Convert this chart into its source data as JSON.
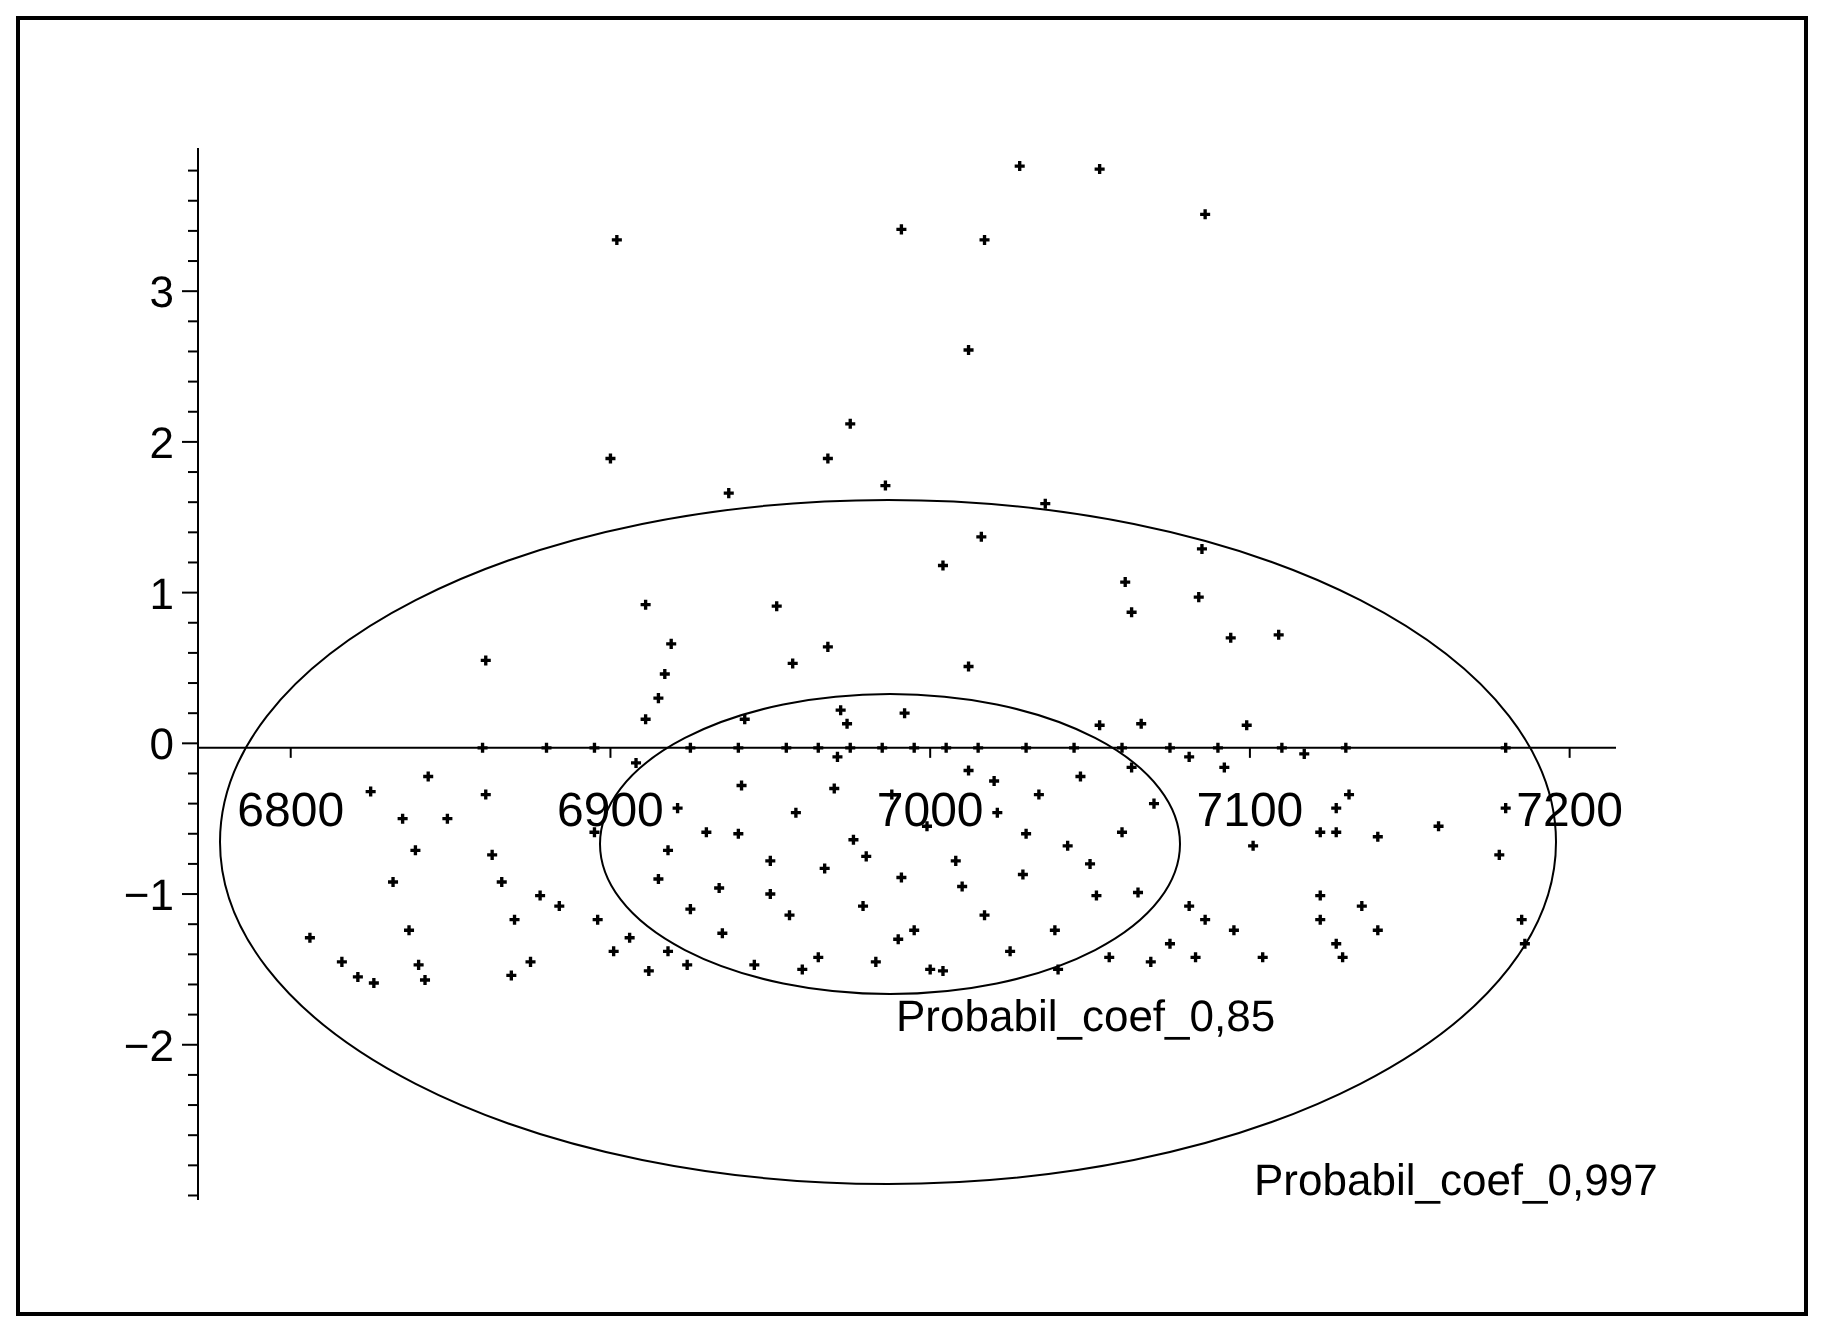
{
  "chart_data": {
    "type": "scatter",
    "marker": "cross",
    "grid": false,
    "xlim": [
      6771,
      7212
    ],
    "xticks": [
      6800,
      6900,
      7000,
      7100,
      7200
    ],
    "ylim": [
      -3.03,
      3.95
    ],
    "yticks": [
      {
        "value": -3.0,
        "label": null
      },
      {
        "value": -2.8,
        "label": null
      },
      {
        "value": -2.6,
        "label": null
      },
      {
        "value": -2.4,
        "label": null
      },
      {
        "value": -2.2,
        "label": null
      },
      {
        "value": -2,
        "label": "−2"
      },
      {
        "value": -1.8,
        "label": null
      },
      {
        "value": -1.6,
        "label": null
      },
      {
        "value": -1.4,
        "label": null
      },
      {
        "value": -1.2,
        "label": null
      },
      {
        "value": -1,
        "label": "−1"
      },
      {
        "value": -0.8,
        "label": null
      },
      {
        "value": -0.6,
        "label": null
      },
      {
        "value": -0.4,
        "label": null
      },
      {
        "value": -0.2,
        "label": null
      },
      0,
      {
        "value": 0.2,
        "label": null
      },
      {
        "value": 0.4,
        "label": null
      },
      {
        "value": 0.6,
        "label": null
      },
      {
        "value": 0.8,
        "label": null
      },
      1,
      {
        "value": 1.2,
        "label": null
      },
      {
        "value": 1.4,
        "label": null
      },
      {
        "value": 1.6,
        "label": null
      },
      {
        "value": 1.8,
        "label": null
      },
      2,
      {
        "value": 2.2,
        "label": null
      },
      {
        "value": 2.4,
        "label": null
      },
      {
        "value": 2.6,
        "label": null
      },
      {
        "value": 2.8,
        "label": null
      },
      3,
      {
        "value": 3.2,
        "label": null
      },
      {
        "value": 3.4,
        "label": null
      },
      {
        "value": 3.6,
        "label": null
      },
      {
        "value": 3.8,
        "label": null
      }
    ],
    "annotations": [
      "Probabil_coef_0,85",
      "Probabil_coef_0,997"
    ],
    "series": [
      {
        "color": "#000000",
        "x": [
          6902,
          7028,
          7053,
          7086,
          6991,
          7017,
          7012,
          6975,
          6900,
          6968,
          6986,
          6937,
          7036,
          7016,
          7004,
          7061,
          7063,
          7085,
          7084,
          7094,
          7109,
          6911,
          6952,
          6919,
          6957,
          6968,
          7012,
          6861,
          6917,
          6915,
          6911,
          6972,
          6992,
          6942,
          7053,
          7066,
          7099,
          6974,
          6806,
          6816,
          6821,
          6826,
          6825,
          6843,
          6835,
          6839,
          6832,
          6837,
          6840,
          6842,
          6849,
          6861,
          6863,
          6866,
          6870,
          6869,
          6875,
          6878,
          6884,
          6895,
          6896,
          6901,
          6906,
          6912,
          6918,
          6924,
          6908,
          6921,
          6918,
          6930,
          6934,
          6935,
          6941,
          6945,
          6950,
          6956,
          6958,
          6965,
          6967,
          6971,
          6976,
          6979,
          6983,
          6988,
          6991,
          6995,
          6999,
          7004,
          7008,
          7012,
          7017,
          7021,
          7025,
          7029,
          7034,
          7039,
          7043,
          7047,
          7052,
          7056,
          7060,
          7063,
          7065,
          7069,
          7081,
          7086,
          7075,
          7083,
          7095,
          7101,
          7104,
          7081,
          7092,
          7117,
          7127,
          7131,
          7122,
          7127,
          7140,
          7122,
          7135,
          7122,
          7127,
          7129,
          7140,
          7159,
          7180,
          7178,
          7185,
          7186,
          6860,
          6880,
          6895,
          6925,
          6940,
          6955,
          6965,
          6975,
          6985,
          6995,
          7005,
          7015,
          7030,
          7045,
          7060,
          7075,
          7090,
          7110,
          7130,
          7180,
          6950,
          6990,
          7010,
          6940,
          7030,
          6970,
          7050,
          6925,
          6960,
          7000,
          7040,
          7020,
          6980,
          7070,
          6915
        ],
        "values": [
          3.34,
          3.83,
          3.81,
          3.51,
          3.41,
          3.34,
          2.61,
          2.12,
          1.89,
          1.89,
          1.71,
          1.66,
          1.59,
          1.37,
          1.18,
          1.07,
          0.87,
          1.29,
          0.97,
          0.7,
          0.72,
          0.92,
          0.91,
          0.66,
          0.53,
          0.64,
          0.51,
          0.55,
          0.46,
          0.3,
          0.16,
          0.22,
          0.2,
          0.16,
          0.12,
          0.13,
          0.12,
          0.13,
          -1.29,
          -1.45,
          -1.55,
          -1.59,
          -0.32,
          -0.22,
          -0.5,
          -0.71,
          -0.92,
          -1.24,
          -1.47,
          -1.57,
          -0.5,
          -0.34,
          -0.74,
          -0.92,
          -1.17,
          -1.54,
          -1.45,
          -1.01,
          -1.08,
          -0.59,
          -1.17,
          -1.38,
          -1.29,
          -1.51,
          -1.38,
          -1.47,
          -0.13,
          -0.43,
          -0.71,
          -0.59,
          -0.96,
          -1.26,
          -0.28,
          -1.47,
          -0.78,
          -1.14,
          -0.46,
          -1.42,
          -0.83,
          -0.09,
          -0.64,
          -1.08,
          -1.45,
          -0.34,
          -0.89,
          -1.24,
          -0.55,
          -1.51,
          -0.78,
          -0.18,
          -1.14,
          -0.46,
          -1.38,
          -0.87,
          -0.34,
          -1.24,
          -0.68,
          -0.22,
          -1.01,
          -1.42,
          -0.59,
          -0.16,
          -0.99,
          -1.45,
          -1.08,
          -1.17,
          -1.33,
          -1.42,
          -1.24,
          -0.68,
          -1.42,
          -0.09,
          -0.16,
          -0.07,
          -0.43,
          -0.34,
          -0.59,
          -0.59,
          -0.62,
          -1.01,
          -1.08,
          -1.17,
          -1.33,
          -1.42,
          -1.24,
          -0.55,
          -0.43,
          -0.74,
          -1.17,
          -1.33,
          -0.03,
          -0.03,
          -0.03,
          -0.03,
          -0.03,
          -0.03,
          -0.03,
          -0.03,
          -0.03,
          -0.03,
          -0.03,
          -0.03,
          -0.03,
          -0.03,
          -0.03,
          -0.03,
          -0.03,
          -0.03,
          -0.03,
          -0.03,
          -1.0,
          -1.3,
          -0.95,
          -0.6,
          -0.6,
          -0.3,
          -0.8,
          -1.1,
          -1.5,
          -1.5,
          -1.5,
          -0.25,
          -0.75,
          -0.4,
          -0.9
        ]
      }
    ]
  }
}
